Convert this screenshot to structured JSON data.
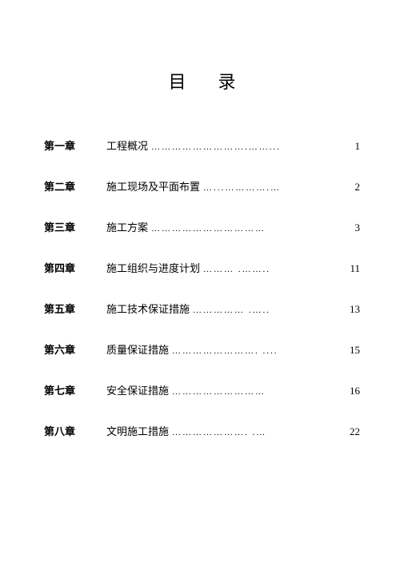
{
  "title": "目录",
  "title_char1": "目",
  "title_char2": "录",
  "entries": [
    {
      "label": "第一章",
      "title": "工程概况",
      "dots": "……………………….……...",
      "page": "1"
    },
    {
      "label": "第二章",
      "title": "施工现场及平面布置",
      "dots": "…...………….…",
      "page": "2"
    },
    {
      "label": "第三章",
      "title": "施工方案",
      "dots": "…………………………… ",
      "page": "3"
    },
    {
      "label": "第四章",
      "title": "施工组织与进度计划",
      "dots": " ……… .……..",
      "page": "11"
    },
    {
      "label": "第五章",
      "title": "施工技术保证措施",
      "dots": "…………… .…..",
      "page": "13"
    },
    {
      "label": "第六章",
      "title": "质量保证措施",
      "dots": "……………………. ....",
      "page": "15"
    },
    {
      "label": "第七章",
      "title": "安全保证措施",
      "dots": "……………………… ",
      "page": "16"
    },
    {
      "label": "第八章",
      "title": "文明施工措施",
      "dots": " …………………. .…",
      "page": "22"
    }
  ],
  "colors": {
    "background": "#ffffff",
    "text": "#000000"
  },
  "fonts": {
    "body_size": 13,
    "title_size": 22
  }
}
